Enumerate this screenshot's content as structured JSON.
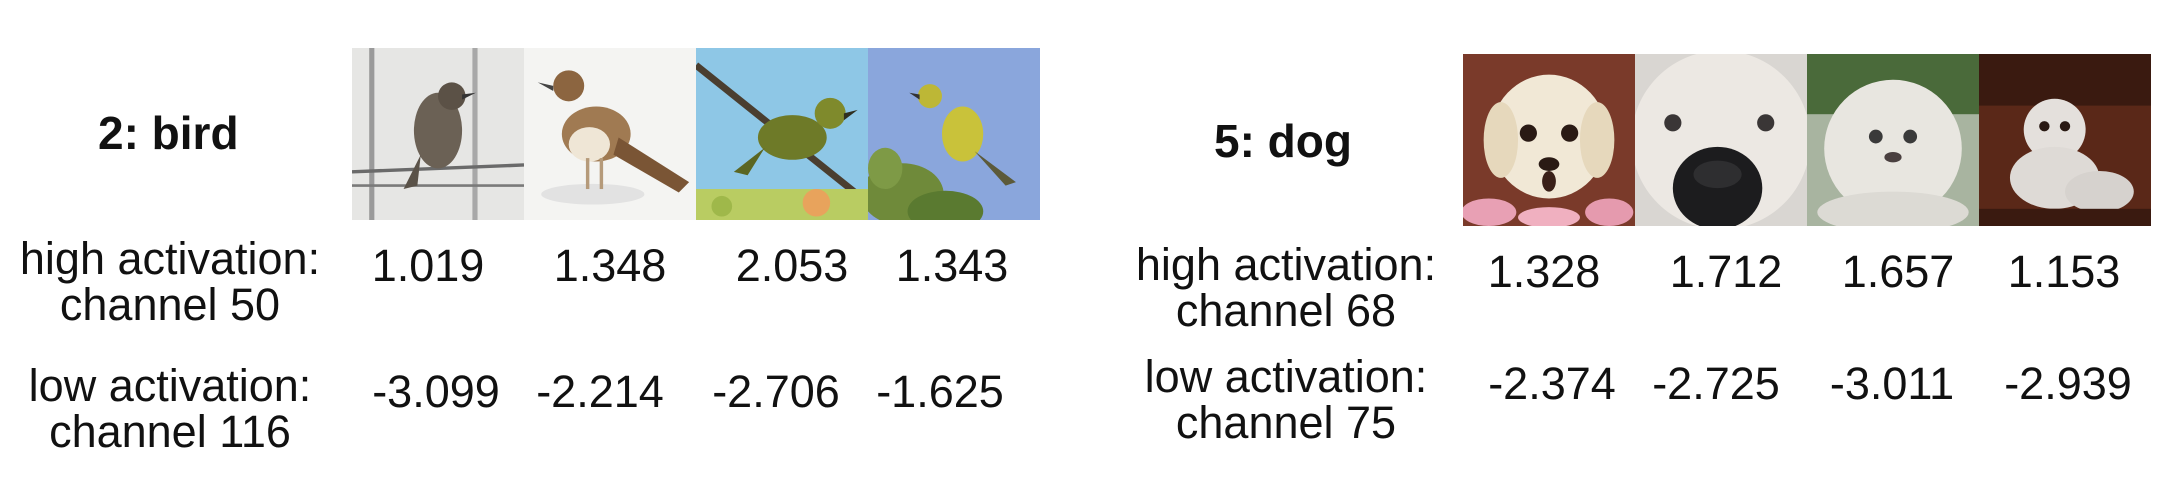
{
  "panels": [
    {
      "class_label": "2: bird",
      "high_label": [
        "high activation:",
        "channel 50"
      ],
      "low_label": [
        "low activation:",
        "channel 116"
      ],
      "high_values": [
        "1.019",
        "1.348",
        "2.053",
        "1.343"
      ],
      "low_values": [
        "-3.099",
        "-2.214",
        "-2.706",
        "-1.625"
      ],
      "images": [
        "bird-on-wire-image",
        "brown-bird-image",
        "green-bird-on-branch-image",
        "yellow-bird-on-plant-image"
      ]
    },
    {
      "class_label": "5: dog",
      "high_label": [
        "high activation:",
        "channel 68"
      ],
      "low_label": [
        "low activation:",
        "channel 75"
      ],
      "high_values": [
        "1.328",
        "1.712",
        "1.657",
        "1.153"
      ],
      "low_values": [
        "-2.374",
        "-2.725",
        "-3.011",
        "-2.939"
      ],
      "images": [
        "white-puppy-face-image",
        "white-dog-closeup-image",
        "fluffy-white-dog-image",
        "small-white-dog-image"
      ]
    }
  ]
}
